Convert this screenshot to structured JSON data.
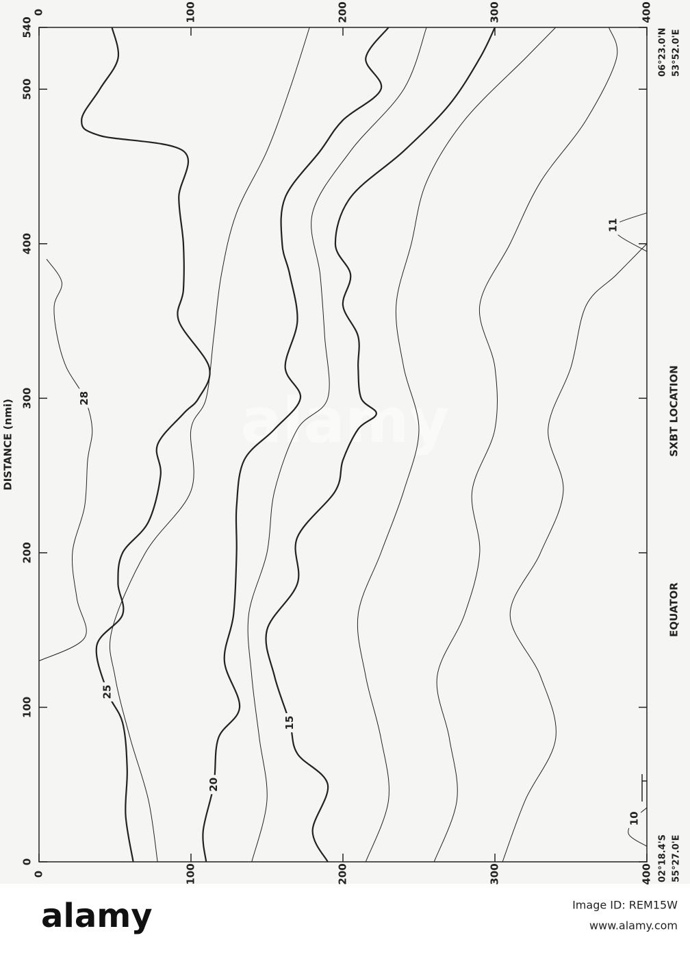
{
  "chart_data": {
    "type": "contour",
    "x_label": "DISTANCE (nmi)",
    "location_label": "SXBT LOCATION",
    "equator_label": "EQUATOR",
    "start_lat": "02°18.4'S",
    "start_lon": "55°27.0'E",
    "end_lat": "06°23.0'N",
    "end_lon": "53°52.0'E",
    "xlim": [
      0,
      540
    ],
    "xticks": [
      0,
      100,
      200,
      300,
      400,
      500,
      540
    ],
    "ylim": [
      0,
      400
    ],
    "yticks": [
      0,
      100,
      200,
      300,
      400
    ],
    "series": [
      {
        "name": "28",
        "x": [
          130,
          145,
          170,
          200,
          230,
          260,
          280,
          300,
          320,
          340,
          360,
          375,
          390
        ],
        "values": [
          0,
          30,
          25,
          22,
          30,
          32,
          35,
          30,
          18,
          12,
          10,
          15,
          5
        ]
      },
      {
        "name": "25",
        "x": [
          0,
          30,
          60,
          90,
          110,
          140,
          160,
          180,
          200,
          220,
          250,
          270,
          290,
          300,
          320,
          350,
          370,
          400,
          430,
          460,
          470,
          480,
          500,
          520,
          540
        ],
        "values": [
          62,
          57,
          58,
          55,
          45,
          38,
          55,
          52,
          55,
          72,
          80,
          78,
          95,
          105,
          112,
          92,
          95,
          95,
          92,
          95,
          40,
          28,
          40,
          52,
          48
        ]
      },
      {
        "x": [
          0,
          40,
          80,
          120,
          150,
          200,
          240,
          280,
          300,
          340,
          380,
          420,
          460,
          500,
          540
        ],
        "values": [
          78,
          72,
          60,
          50,
          48,
          70,
          100,
          100,
          110,
          115,
          120,
          130,
          150,
          165,
          178
        ]
      },
      {
        "name": "20",
        "x": [
          0,
          20,
          50,
          80,
          100,
          130,
          160,
          200,
          230,
          260,
          280,
          300,
          320,
          350,
          380,
          400,
          430,
          460,
          480,
          500,
          520,
          540
        ],
        "values": [
          110,
          108,
          115,
          118,
          132,
          122,
          128,
          130,
          130,
          135,
          155,
          172,
          162,
          170,
          165,
          160,
          162,
          185,
          200,
          225,
          215,
          230
        ]
      },
      {
        "x": [
          0,
          40,
          80,
          120,
          160,
          200,
          240,
          280,
          300,
          340,
          380,
          420,
          460,
          500,
          540
        ],
        "values": [
          140,
          150,
          145,
          140,
          138,
          150,
          155,
          170,
          190,
          188,
          185,
          180,
          205,
          240,
          255
        ]
      },
      {
        "name": "15",
        "x": [
          0,
          20,
          50,
          70,
          90,
          120,
          150,
          180,
          210,
          240,
          260,
          280,
          290,
          300,
          320,
          340,
          360,
          380,
          400,
          430,
          460,
          490,
          520,
          540
        ],
        "values": [
          190,
          180,
          190,
          170,
          165,
          155,
          150,
          170,
          170,
          195,
          200,
          210,
          222,
          212,
          210,
          210,
          200,
          205,
          195,
          205,
          240,
          270,
          290,
          300
        ]
      },
      {
        "x": [
          0,
          40,
          80,
          120,
          160,
          200,
          240,
          280,
          320,
          360,
          400,
          440,
          480,
          520,
          540
        ],
        "values": [
          215,
          230,
          225,
          215,
          210,
          225,
          240,
          250,
          240,
          235,
          245,
          255,
          280,
          320,
          340
        ]
      },
      {
        "x": [
          0,
          40,
          80,
          120,
          160,
          200,
          240,
          280,
          320,
          360,
          400,
          440,
          480,
          520,
          540
        ],
        "values": [
          260,
          275,
          270,
          262,
          280,
          290,
          285,
          300,
          300,
          290,
          310,
          330,
          360,
          380,
          375
        ]
      },
      {
        "x": [
          0,
          40,
          80,
          120,
          160,
          200,
          240,
          280,
          320,
          360,
          380,
          400
        ],
        "values": [
          305,
          320,
          340,
          330,
          310,
          330,
          345,
          335,
          350,
          360,
          380,
          400
        ]
      },
      {
        "name": "11",
        "x": [
          395,
          405,
          412,
          420
        ],
        "values": [
          400,
          382,
          378,
          400
        ]
      },
      {
        "name": "10",
        "x": [
          10,
          18,
          28,
          35
        ],
        "values": [
          400,
          388,
          392,
          400
        ]
      }
    ],
    "watermark": "alamy",
    "footer_logo": "alamy",
    "image_id": "Image ID: REM15W",
    "footer_url": "www.alamy.com"
  }
}
